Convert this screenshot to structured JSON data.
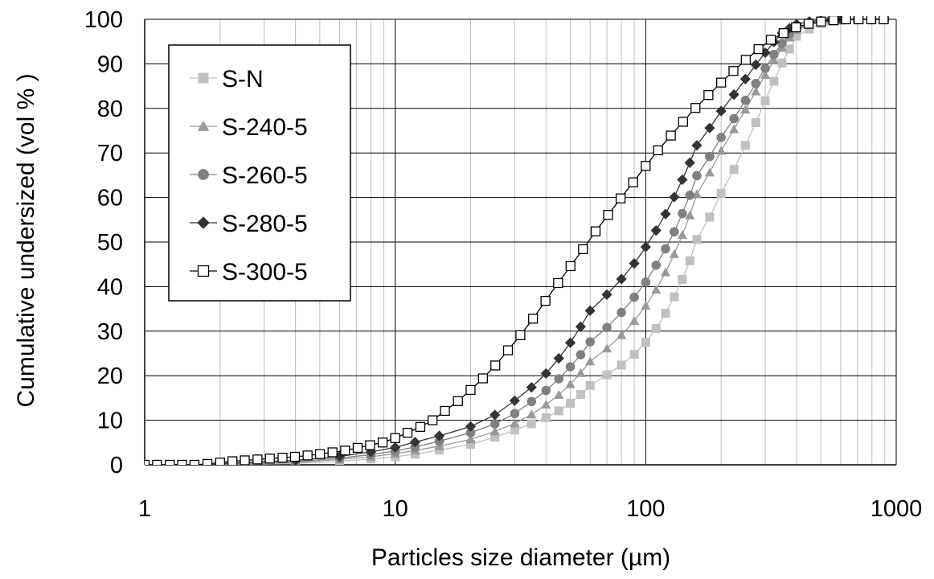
{
  "chart_data": {
    "type": "scatter",
    "title": "",
    "xlabel": "Particles size diameter (µm)",
    "ylabel": "Cumulative undersized (vol % )",
    "x_scale": "log",
    "xlim": [
      1,
      1000
    ],
    "ylim": [
      0,
      100
    ],
    "x_ticks": [
      "1",
      "10",
      "100",
      "1000"
    ],
    "y_ticks": [
      "0",
      "10",
      "20",
      "30",
      "40",
      "50",
      "60",
      "70",
      "80",
      "90",
      "100"
    ],
    "grid": true,
    "legend_position": "top-left",
    "series": [
      {
        "name": "S-N",
        "color": "#c0c0c0",
        "marker": "square-filled",
        "x": [
          2,
          4,
          6,
          8,
          10,
          12,
          15,
          20,
          25,
          30,
          35,
          40,
          45,
          50,
          55,
          60,
          70,
          80,
          90,
          100,
          110,
          120,
          130,
          140,
          150,
          160,
          180,
          200,
          225,
          250,
          275,
          300,
          325,
          350,
          375,
          400,
          450,
          500,
          550,
          600,
          700,
          800,
          900
        ],
        "y": [
          0,
          0.3,
          0.8,
          1.3,
          1.8,
          2.4,
          3.3,
          4.6,
          6.2,
          7.8,
          9.2,
          10.6,
          12.1,
          13.8,
          15.8,
          17.8,
          20.2,
          22.4,
          24.8,
          27.5,
          30.6,
          34.0,
          37.7,
          41.6,
          45.8,
          50.6,
          55.6,
          60.9,
          66.3,
          71.7,
          76.8,
          81.7,
          86.1,
          90.2,
          93.3,
          96.2,
          97.8,
          99.0,
          99.6,
          99.8,
          100,
          100,
          100
        ]
      },
      {
        "name": "S-240-5",
        "color": "#999999",
        "marker": "triangle-filled",
        "x": [
          2,
          4,
          6,
          8,
          10,
          12,
          15,
          20,
          25,
          30,
          35,
          40,
          45,
          50,
          55,
          60,
          70,
          80,
          90,
          100,
          110,
          120,
          130,
          140,
          150,
          160,
          180,
          200,
          225,
          250,
          275,
          300,
          325,
          350,
          375,
          400,
          450,
          500,
          550,
          600,
          700,
          800,
          900
        ],
        "y": [
          0,
          0.5,
          1.2,
          1.8,
          2.5,
          3.2,
          4.2,
          5.7,
          7.5,
          9.3,
          11.3,
          13.5,
          15.7,
          18.1,
          20.6,
          23.2,
          26.1,
          29.1,
          32.3,
          35.7,
          39.3,
          43.2,
          47.3,
          51.6,
          56.0,
          60.7,
          65.6,
          70.5,
          75.3,
          79.7,
          83.8,
          87.5,
          90.8,
          93.6,
          95.9,
          97.6,
          98.7,
          99.4,
          99.8,
          100,
          100,
          100,
          100
        ]
      },
      {
        "name": "S-260-5",
        "color": "#808080",
        "marker": "circle-filled",
        "x": [
          2,
          4,
          6,
          8,
          10,
          12,
          15,
          20,
          25,
          30,
          35,
          40,
          45,
          50,
          55,
          60,
          70,
          80,
          90,
          100,
          110,
          120,
          130,
          140,
          150,
          160,
          180,
          200,
          225,
          250,
          275,
          300,
          325,
          350,
          375,
          400,
          450,
          500,
          550,
          600,
          700,
          800,
          900
        ],
        "y": [
          0.2,
          0.7,
          1.5,
          2.3,
          3.1,
          4.0,
          5.3,
          7.2,
          9.2,
          11.5,
          14.2,
          16.7,
          19.3,
          22.0,
          24.7,
          27.6,
          30.8,
          34.2,
          37.6,
          41.0,
          44.8,
          48.5,
          52.3,
          56.4,
          60.5,
          64.9,
          69.2,
          73.5,
          77.7,
          81.8,
          85.6,
          89.0,
          92.1,
          94.6,
          96.7,
          98.0,
          99.0,
          99.5,
          99.8,
          100,
          100,
          100,
          100
        ]
      },
      {
        "name": "S-280-5",
        "color": "#333333",
        "marker": "diamond-filled",
        "x": [
          2,
          4,
          6,
          8,
          10,
          12,
          15,
          20,
          25,
          30,
          35,
          40,
          45,
          50,
          55,
          60,
          70,
          80,
          90,
          100,
          110,
          120,
          130,
          140,
          150,
          160,
          180,
          200,
          225,
          250,
          275,
          300,
          325,
          350,
          375,
          400,
          450,
          500,
          550,
          600,
          700,
          800,
          900
        ],
        "y": [
          0.3,
          1.0,
          1.9,
          2.9,
          3.9,
          5.1,
          6.5,
          8.6,
          11.2,
          14.4,
          17.4,
          20.5,
          23.9,
          27.4,
          31.0,
          34.6,
          38.2,
          41.7,
          45.2,
          48.9,
          52.6,
          56.3,
          60.1,
          64.0,
          67.8,
          71.7,
          75.6,
          79.4,
          83.1,
          86.6,
          89.8,
          92.5,
          94.9,
          96.9,
          98.0,
          98.9,
          99.5,
          99.8,
          100,
          100,
          100,
          100,
          100
        ]
      },
      {
        "name": "S-300-5",
        "color": "#000000",
        "marker": "square-open",
        "x": [
          1,
          1.12,
          1.26,
          1.41,
          1.58,
          1.78,
          2,
          2.24,
          2.51,
          2.82,
          3.16,
          3.55,
          3.98,
          4.47,
          5.01,
          5.62,
          6.31,
          7.08,
          7.94,
          8.91,
          10,
          11.2,
          12.6,
          14.1,
          15.8,
          17.8,
          20,
          22.4,
          25.1,
          28.2,
          31.6,
          35.5,
          39.8,
          44.7,
          50.1,
          56.2,
          63.1,
          70.8,
          79.4,
          89.1,
          100,
          112,
          126,
          141,
          158,
          178,
          200,
          224,
          251,
          282,
          316,
          355,
          398,
          447,
          501,
          562,
          631,
          708,
          794,
          891
        ],
        "y": [
          0,
          0,
          0,
          0,
          0,
          0.2,
          0.5,
          0.8,
          1.0,
          1.2,
          1.4,
          1.6,
          1.8,
          2.1,
          2.4,
          2.8,
          3.2,
          3.8,
          4.4,
          5.0,
          6.0,
          7.2,
          8.5,
          10.0,
          12.1,
          14.3,
          16.8,
          19.4,
          22.3,
          25.7,
          29.1,
          32.8,
          36.8,
          40.8,
          44.6,
          48.4,
          52.4,
          56.1,
          59.8,
          63.4,
          67.1,
          70.6,
          73.9,
          77.0,
          80.1,
          83.0,
          85.8,
          88.4,
          90.9,
          93.3,
          95.4,
          96.9,
          98.2,
          99.0,
          99.5,
          99.8,
          100,
          100,
          100,
          100
        ]
      }
    ]
  }
}
